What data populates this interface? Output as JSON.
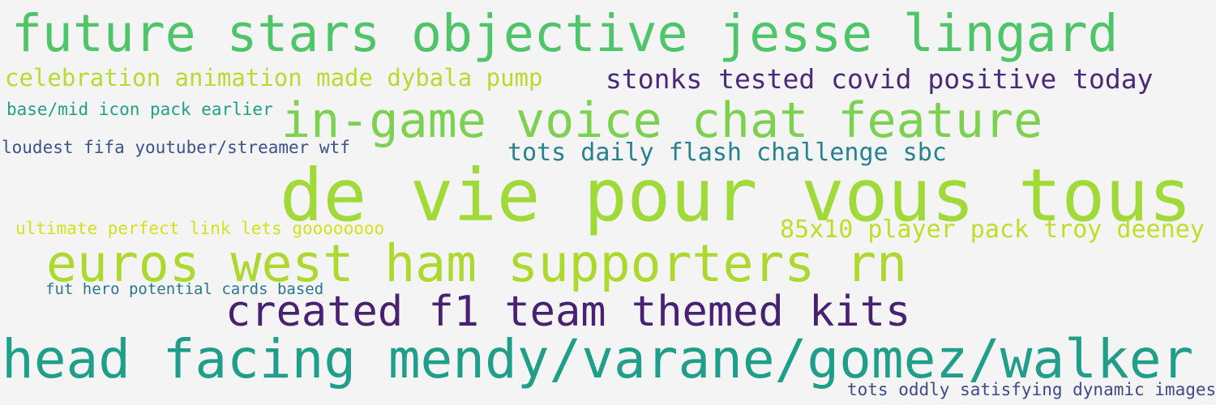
{
  "word_cloud": {
    "background": "#f4f4f4",
    "phrases": [
      {
        "text": "future stars objective jesse lingard",
        "color": "#4fc56a"
      },
      {
        "text": "celebration animation made dybala pump",
        "color": "#b5dc2e"
      },
      {
        "text": "stonks tested covid positive today",
        "color": "#472a7a"
      },
      {
        "text": "base/mid icon pack earlier",
        "color": "#1fa187"
      },
      {
        "text": "in-game voice chat feature",
        "color": "#7cd250"
      },
      {
        "text": "loudest fifa youtuber/streamer wtf",
        "color": "#3b528b"
      },
      {
        "text": "tots daily flash challenge sbc",
        "color": "#26828e"
      },
      {
        "text": "de vie pour vous tous",
        "color": "#a0da39"
      },
      {
        "text": "ultimate perfect link lets goooooooo",
        "color": "#d2e21b"
      },
      {
        "text": "85x10 player pack troy deeney",
        "color": "#bddf26"
      },
      {
        "text": "euros west ham supporters rn",
        "color": "#add92e"
      },
      {
        "text": "fut hero potential cards based",
        "color": "#2a788e"
      },
      {
        "text": "created f1 team themed kits",
        "color": "#482173"
      },
      {
        "text": "head facing mendy/varane/gomez/walker",
        "color": "#1f9e89"
      },
      {
        "text": "tots oddly satisfying dynamic images",
        "color": "#3e4a89"
      }
    ]
  }
}
